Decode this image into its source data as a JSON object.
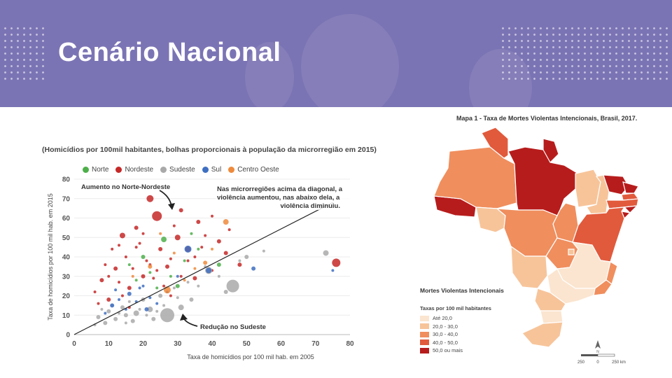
{
  "header": {
    "title": "Cenário Nacional"
  },
  "colors": {
    "norte": "#4daf4a",
    "nordeste": "#c62828",
    "sudeste": "#a9a9a9",
    "sul": "#3e6fc1",
    "centro_oeste": "#ee8a3c",
    "map_1": "#fbe5d0",
    "map_2": "#f7c49a",
    "map_3": "#f08e5e",
    "map_4": "#e15a3c",
    "map_5": "#b71c1c"
  },
  "chart_data": {
    "type": "scatter",
    "title": "(Homicídios por 100mil habitantes, bolhas proporcionais à população da microrregião em 2015)",
    "xlabel": "Taxa de homicídios por 100 mil hab. em 2005",
    "ylabel": "Taxa de homicídios por 100 mil hab. em 2015",
    "xlim": [
      0,
      80
    ],
    "ylim": [
      0,
      80
    ],
    "xticks": [
      "0",
      "10",
      "20",
      "30",
      "40",
      "50",
      "60",
      "70",
      "80"
    ],
    "yticks": [
      "0",
      "10",
      "20",
      "30",
      "40",
      "50",
      "60",
      "70",
      "80"
    ],
    "legend": [
      {
        "name": "Norte",
        "color_key": "norte"
      },
      {
        "name": "Nordeste",
        "color_key": "nordeste"
      },
      {
        "name": "Sudeste",
        "color_key": "sudeste"
      },
      {
        "name": "Sul",
        "color_key": "sul"
      },
      {
        "name": "Centro Oeste",
        "color_key": "centro_oeste"
      }
    ],
    "diagonal": [
      [
        0,
        0
      ],
      [
        75,
        68
      ]
    ],
    "annotations": {
      "top_left": "Aumento no Norte-Nordeste",
      "top_right_1": "Nas microrregiões acima da diagonal, a",
      "top_right_2": "violência aumentou, nas abaixo dela, a",
      "top_right_3": "violência diminuiu.",
      "bottom": "Redução no Sudeste"
    },
    "series": [
      {
        "name": "Nordeste",
        "color_key": "nordeste",
        "points": [
          [
            24,
            61,
            7
          ],
          [
            22,
            70,
            5
          ],
          [
            76,
            37,
            6
          ],
          [
            30,
            50,
            4
          ],
          [
            14,
            51,
            4
          ],
          [
            33,
            44,
            4
          ],
          [
            12,
            34,
            3
          ],
          [
            36,
            58,
            3
          ],
          [
            42,
            48,
            3
          ],
          [
            48,
            36,
            3
          ],
          [
            18,
            55,
            3
          ],
          [
            25,
            44,
            3
          ],
          [
            20,
            30,
            3
          ],
          [
            16,
            24,
            3
          ],
          [
            8,
            28,
            3
          ],
          [
            10,
            18,
            3
          ],
          [
            27,
            35,
            3
          ],
          [
            31,
            64,
            3
          ],
          [
            35,
            29,
            3
          ],
          [
            44,
            42,
            3
          ],
          [
            15,
            40,
            2
          ],
          [
            9,
            36,
            2
          ],
          [
            19,
            47,
            2
          ],
          [
            28,
            39,
            2
          ],
          [
            13,
            27,
            2
          ],
          [
            21,
            38,
            2
          ],
          [
            38,
            51,
            2
          ],
          [
            6,
            22,
            2
          ],
          [
            17,
            34,
            2
          ],
          [
            23,
            29,
            2
          ],
          [
            29,
            56,
            2
          ],
          [
            40,
            33,
            2
          ],
          [
            11,
            44,
            2
          ],
          [
            26,
            25,
            2
          ],
          [
            33,
            38,
            2
          ],
          [
            20,
            52,
            2
          ],
          [
            14,
            20,
            2
          ],
          [
            7,
            16,
            2
          ],
          [
            37,
            45,
            2
          ],
          [
            24,
            33,
            2
          ],
          [
            18,
            45,
            2
          ],
          [
            45,
            54,
            2
          ],
          [
            31,
            30,
            2
          ],
          [
            10,
            30,
            2
          ],
          [
            28,
            20,
            2
          ],
          [
            22,
            36,
            2
          ],
          [
            16,
            14,
            2
          ],
          [
            40,
            61,
            2
          ],
          [
            13,
            46,
            2
          ],
          [
            35,
            40,
            2
          ]
        ]
      },
      {
        "name": "Sudeste",
        "color_key": "sudeste",
        "points": [
          [
            27,
            10,
            10
          ],
          [
            46,
            25,
            9
          ],
          [
            39,
            33,
            5
          ],
          [
            73,
            42,
            4
          ],
          [
            31,
            14,
            4
          ],
          [
            18,
            11,
            4
          ],
          [
            22,
            13,
            4
          ],
          [
            12,
            8,
            3
          ],
          [
            15,
            10,
            3
          ],
          [
            9,
            6,
            3
          ],
          [
            20,
            18,
            3
          ],
          [
            25,
            20,
            3
          ],
          [
            14,
            14,
            3
          ],
          [
            10,
            12,
            3
          ],
          [
            7,
            9,
            3
          ],
          [
            17,
            7,
            3
          ],
          [
            23,
            8,
            3
          ],
          [
            50,
            40,
            3
          ],
          [
            44,
            22,
            3
          ],
          [
            34,
            18,
            3
          ],
          [
            19,
            13,
            2
          ],
          [
            13,
            11,
            2
          ],
          [
            16,
            17,
            2
          ],
          [
            11,
            15,
            2
          ],
          [
            8,
            13,
            2
          ],
          [
            21,
            10,
            2
          ],
          [
            26,
            15,
            2
          ],
          [
            30,
            19,
            2
          ],
          [
            36,
            25,
            2
          ],
          [
            42,
            30,
            2
          ],
          [
            48,
            38,
            2
          ],
          [
            55,
            43,
            2
          ],
          [
            6,
            5,
            2
          ],
          [
            15,
            6,
            2
          ],
          [
            24,
            12,
            2
          ],
          [
            29,
            24,
            2
          ],
          [
            33,
            27,
            2
          ],
          [
            38,
            35,
            2
          ]
        ]
      },
      {
        "name": "Sul",
        "color_key": "sul",
        "points": [
          [
            33,
            44,
            5
          ],
          [
            39,
            33,
            4
          ],
          [
            21,
            13,
            3
          ],
          [
            16,
            21,
            3
          ],
          [
            11,
            15,
            3
          ],
          [
            52,
            34,
            3
          ],
          [
            13,
            18,
            2
          ],
          [
            19,
            24,
            2
          ],
          [
            24,
            16,
            2
          ],
          [
            27,
            22,
            2
          ],
          [
            9,
            11,
            2
          ],
          [
            15,
            13,
            2
          ],
          [
            18,
            17,
            2
          ],
          [
            22,
            19,
            2
          ],
          [
            12,
            23,
            2
          ],
          [
            75,
            33,
            2
          ],
          [
            30,
            30,
            2
          ],
          [
            20,
            25,
            2
          ]
        ]
      },
      {
        "name": "Norte",
        "color_key": "norte",
        "points": [
          [
            26,
            49,
            4
          ],
          [
            30,
            25,
            3
          ],
          [
            20,
            40,
            3
          ],
          [
            42,
            36,
            3
          ],
          [
            28,
            30,
            2
          ],
          [
            34,
            52,
            2
          ],
          [
            22,
            32,
            2
          ],
          [
            18,
            28,
            2
          ],
          [
            36,
            44,
            2
          ],
          [
            24,
            24,
            2
          ],
          [
            32,
            38,
            2
          ],
          [
            16,
            36,
            2
          ]
        ]
      },
      {
        "name": "Centro Oeste",
        "color_key": "centro_oeste",
        "points": [
          [
            27,
            23,
            5
          ],
          [
            44,
            58,
            4
          ],
          [
            38,
            37,
            3
          ],
          [
            22,
            35,
            3
          ],
          [
            25,
            52,
            2
          ],
          [
            32,
            28,
            2
          ],
          [
            17,
            30,
            2
          ],
          [
            35,
            34,
            2
          ],
          [
            40,
            44,
            2
          ],
          [
            29,
            42,
            2
          ]
        ]
      }
    ]
  },
  "map": {
    "title": "Mapa 1 - Taxa de Mortes Violentas Intencionais, Brasil, 2017.",
    "legend_title": "Mortes Violentas Intencionais",
    "legend_subtitle": "Taxas por 100 mil habitantes",
    "legend_items": [
      {
        "label": "Até 20,0",
        "color_key": "map_1"
      },
      {
        "label": "20,0 - 30,0",
        "color_key": "map_2"
      },
      {
        "label": "30,0 - 40,0",
        "color_key": "map_3"
      },
      {
        "label": "40,0 - 50,0",
        "color_key": "map_4"
      },
      {
        "label": "50,0 ou mais",
        "color_key": "map_5"
      }
    ],
    "states": [
      {
        "name": "AC",
        "color_key": "map_5"
      },
      {
        "name": "AM",
        "color_key": "map_3"
      },
      {
        "name": "RR",
        "color_key": "map_4"
      },
      {
        "name": "PA",
        "color_key": "map_5"
      },
      {
        "name": "AP",
        "color_key": "map_5"
      },
      {
        "name": "MA",
        "color_key": "map_2"
      },
      {
        "name": "PI",
        "color_key": "map_2"
      },
      {
        "name": "CE",
        "color_key": "map_5"
      },
      {
        "name": "RN",
        "color_key": "map_5"
      },
      {
        "name": "PB",
        "color_key": "map_4"
      },
      {
        "name": "PE",
        "color_key": "map_4"
      },
      {
        "name": "AL",
        "color_key": "map_5"
      },
      {
        "name": "SE",
        "color_key": "map_5"
      },
      {
        "name": "BA",
        "color_key": "map_4"
      },
      {
        "name": "TO",
        "color_key": "map_3"
      },
      {
        "name": "RO",
        "color_key": "map_2"
      },
      {
        "name": "MT",
        "color_key": "map_3"
      },
      {
        "name": "GO",
        "color_key": "map_3"
      },
      {
        "name": "DF",
        "color_key": "map_2"
      },
      {
        "name": "MG",
        "color_key": "map_1"
      },
      {
        "name": "ES",
        "color_key": "map_3"
      },
      {
        "name": "RJ",
        "color_key": "map_3"
      },
      {
        "name": "SP",
        "color_key": "map_1"
      },
      {
        "name": "MS",
        "color_key": "map_2"
      },
      {
        "name": "PR",
        "color_key": "map_2"
      },
      {
        "name": "SC",
        "color_key": "map_1"
      },
      {
        "name": "RS",
        "color_key": "map_2"
      }
    ],
    "scale": {
      "left": "250",
      "mid": "0",
      "right": "250 km"
    }
  }
}
